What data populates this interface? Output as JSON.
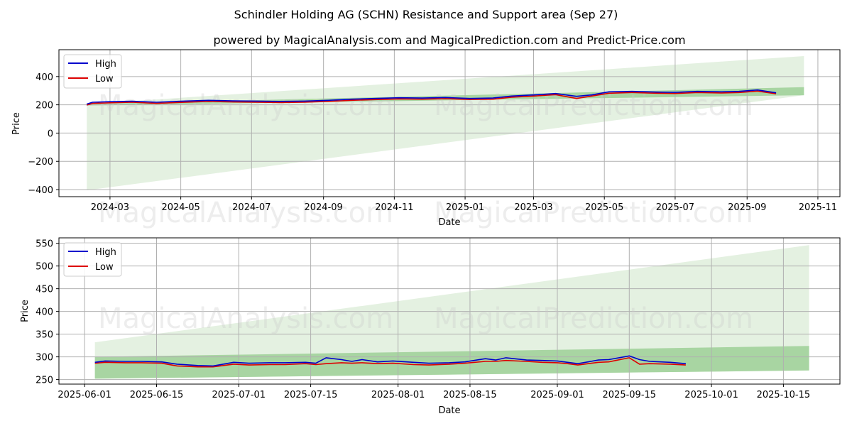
{
  "figure": {
    "title": "Schindler Holding AG (SCHN) Resistance and Support area (Sep 27)",
    "subtitle": "powered by MagicalAnalysis.com and MagicalPrediction.com and Predict-Price.com",
    "watermarks": [
      "MagicalAnalysis.com",
      "MagicalPrediction.com"
    ]
  },
  "colors": {
    "high": "#0000cc",
    "low": "#dd0000",
    "wide_band": "#e4f1e1",
    "narrow_band": "#a8d5a2",
    "grid": "#b0b0b0",
    "watermark": "#cccccc"
  },
  "chart_data": [
    {
      "type": "line",
      "panel": "top",
      "title": "",
      "xlabel": "Date",
      "ylabel": "Price",
      "xlim": [
        "2024-01-17",
        "2025-11-20"
      ],
      "ylim": [
        -450,
        590
      ],
      "x_ticks": [
        "2024-03-01",
        "2024-05-01",
        "2024-07-01",
        "2024-09-01",
        "2024-11-01",
        "2025-01-01",
        "2025-03-01",
        "2025-05-01",
        "2025-07-01",
        "2025-09-01",
        "2025-11-01"
      ],
      "x_tick_labels": [
        "2024-03",
        "2024-05",
        "2024-07",
        "2024-09",
        "2024-11",
        "2025-01",
        "2025-03",
        "2025-05",
        "2025-07",
        "2025-09",
        "2025-11"
      ],
      "y_ticks": [
        -400,
        -200,
        0,
        200,
        400
      ],
      "y_tick_labels": [
        "−400",
        "−200",
        "0",
        "200",
        "400"
      ],
      "grid": true,
      "legend": {
        "position": "top-left",
        "entries": [
          "High",
          "Low"
        ]
      },
      "series": [
        {
          "name": "High",
          "color": "#0000cc",
          "x": [
            "2024-02-10",
            "2024-02-15",
            "2024-03-01",
            "2024-03-20",
            "2024-04-10",
            "2024-05-01",
            "2024-05-25",
            "2024-06-15",
            "2024-07-05",
            "2024-07-25",
            "2024-08-15",
            "2024-09-05",
            "2024-09-25",
            "2024-10-15",
            "2024-11-05",
            "2024-11-25",
            "2024-12-15",
            "2025-01-05",
            "2025-01-25",
            "2025-02-10",
            "2025-03-01",
            "2025-03-20",
            "2025-04-07",
            "2025-04-20",
            "2025-05-05",
            "2025-05-25",
            "2025-06-15",
            "2025-07-01",
            "2025-07-20",
            "2025-08-10",
            "2025-08-25",
            "2025-09-10",
            "2025-09-26"
          ],
          "values": [
            205,
            218,
            222,
            225,
            218,
            225,
            232,
            228,
            226,
            224,
            226,
            232,
            240,
            245,
            250,
            248,
            252,
            245,
            248,
            262,
            270,
            280,
            260,
            270,
            292,
            295,
            290,
            288,
            295,
            292,
            295,
            305,
            285
          ]
        },
        {
          "name": "Low",
          "color": "#dd0000",
          "x": [
            "2024-02-10",
            "2024-02-15",
            "2024-03-01",
            "2024-03-20",
            "2024-04-10",
            "2024-05-01",
            "2024-05-25",
            "2024-06-15",
            "2024-07-05",
            "2024-07-25",
            "2024-08-15",
            "2024-09-05",
            "2024-09-25",
            "2024-10-15",
            "2024-11-05",
            "2024-11-25",
            "2024-12-15",
            "2025-01-05",
            "2025-01-25",
            "2025-02-10",
            "2025-03-01",
            "2025-03-20",
            "2025-04-07",
            "2025-04-20",
            "2025-05-05",
            "2025-05-25",
            "2025-06-15",
            "2025-07-01",
            "2025-07-20",
            "2025-08-10",
            "2025-08-25",
            "2025-09-10",
            "2025-09-26"
          ],
          "values": [
            198,
            210,
            214,
            218,
            210,
            217,
            224,
            220,
            218,
            216,
            218,
            224,
            232,
            237,
            242,
            240,
            244,
            238,
            240,
            254,
            262,
            272,
            245,
            262,
            282,
            287,
            282,
            280,
            287,
            284,
            287,
            297,
            278
          ]
        }
      ],
      "bands": [
        {
          "name": "support-resistance-wide",
          "color": "#e4f1e1",
          "x": [
            "2024-02-10",
            "2025-10-20"
          ],
          "upper": [
            205,
            545
          ],
          "lower": [
            -405,
            268
          ]
        },
        {
          "name": "support-resistance-narrow",
          "color": "#a8d5a2",
          "x": [
            "2024-02-10",
            "2025-10-20"
          ],
          "upper": [
            205,
            325
          ],
          "lower": [
            195,
            268
          ]
        }
      ]
    },
    {
      "type": "line",
      "panel": "bottom",
      "title": "",
      "xlabel": "Date",
      "ylabel": "Price",
      "xlim": [
        "2025-05-27",
        "2025-10-26"
      ],
      "ylim": [
        240,
        562
      ],
      "x_ticks": [
        "2025-06-01",
        "2025-06-15",
        "2025-07-01",
        "2025-07-15",
        "2025-08-01",
        "2025-08-15",
        "2025-09-01",
        "2025-09-15",
        "2025-10-01",
        "2025-10-15"
      ],
      "x_tick_labels": [
        "2025-06-01",
        "2025-06-15",
        "2025-07-01",
        "2025-07-15",
        "2025-08-01",
        "2025-08-15",
        "2025-09-01",
        "2025-09-15",
        "2025-10-01",
        "2025-10-15"
      ],
      "y_ticks": [
        250,
        300,
        350,
        400,
        450,
        500,
        550
      ],
      "y_tick_labels": [
        "250",
        "300",
        "350",
        "400",
        "450",
        "500",
        "550"
      ],
      "grid": true,
      "legend": {
        "position": "top-left",
        "entries": [
          "High",
          "Low"
        ]
      },
      "series": [
        {
          "name": "High",
          "color": "#0000cc",
          "x": [
            "2025-06-03",
            "2025-06-05",
            "2025-06-09",
            "2025-06-12",
            "2025-06-16",
            "2025-06-19",
            "2025-06-23",
            "2025-06-26",
            "2025-06-30",
            "2025-07-03",
            "2025-07-07",
            "2025-07-10",
            "2025-07-14",
            "2025-07-16",
            "2025-07-18",
            "2025-07-21",
            "2025-07-23",
            "2025-07-25",
            "2025-07-28",
            "2025-07-31",
            "2025-08-04",
            "2025-08-07",
            "2025-08-11",
            "2025-08-14",
            "2025-08-18",
            "2025-08-20",
            "2025-08-22",
            "2025-08-26",
            "2025-08-29",
            "2025-09-01",
            "2025-09-03",
            "2025-09-05",
            "2025-09-09",
            "2025-09-11",
            "2025-09-15",
            "2025-09-17",
            "2025-09-19",
            "2025-09-23",
            "2025-09-26"
          ],
          "values": [
            288,
            291,
            290,
            290,
            289,
            284,
            281,
            280,
            288,
            286,
            287,
            287,
            288,
            286,
            298,
            294,
            290,
            294,
            289,
            291,
            288,
            286,
            287,
            289,
            296,
            293,
            298,
            293,
            292,
            291,
            288,
            285,
            293,
            294,
            302,
            294,
            290,
            288,
            285
          ]
        },
        {
          "name": "Low",
          "color": "#dd0000",
          "x": [
            "2025-06-03",
            "2025-06-05",
            "2025-06-09",
            "2025-06-12",
            "2025-06-16",
            "2025-06-19",
            "2025-06-23",
            "2025-06-26",
            "2025-06-30",
            "2025-07-03",
            "2025-07-07",
            "2025-07-10",
            "2025-07-14",
            "2025-07-16",
            "2025-07-18",
            "2025-07-21",
            "2025-07-23",
            "2025-07-25",
            "2025-07-28",
            "2025-07-31",
            "2025-08-04",
            "2025-08-07",
            "2025-08-11",
            "2025-08-14",
            "2025-08-18",
            "2025-08-20",
            "2025-08-22",
            "2025-08-26",
            "2025-08-29",
            "2025-09-01",
            "2025-09-03",
            "2025-09-05",
            "2025-09-09",
            "2025-09-11",
            "2025-09-15",
            "2025-09-17",
            "2025-09-19",
            "2025-09-23",
            "2025-09-26"
          ],
          "values": [
            286,
            288,
            287,
            287,
            286,
            280,
            278,
            278,
            284,
            282,
            283,
            283,
            285,
            283,
            285,
            287,
            286,
            287,
            285,
            286,
            283,
            282,
            284,
            286,
            290,
            290,
            292,
            290,
            288,
            287,
            285,
            282,
            288,
            289,
            298,
            284,
            285,
            284,
            282
          ]
        }
      ],
      "bands": [
        {
          "name": "support-resistance-wide",
          "color": "#e4f1e1",
          "x": [
            "2025-06-03",
            "2025-10-20"
          ],
          "upper": [
            332,
            546
          ],
          "lower": [
            252,
            270
          ]
        },
        {
          "name": "support-resistance-narrow",
          "color": "#a8d5a2",
          "x": [
            "2025-06-03",
            "2025-10-20"
          ],
          "upper": [
            300,
            324
          ],
          "lower": [
            252,
            270
          ]
        }
      ]
    }
  ]
}
